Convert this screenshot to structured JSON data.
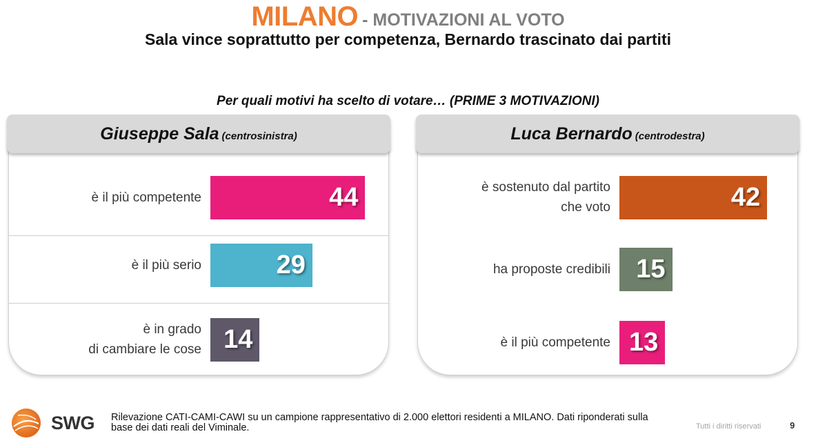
{
  "header": {
    "title": "MILANO",
    "title_suffix": "- MOTIVAZIONI AL VOTO",
    "subtitle": "Sala vince soprattutto per competenza, Bernardo trascinato dai partiti",
    "question": "Per quali motivi ha scelto di votare… (PRIME 3 MOTIVAZIONI)"
  },
  "colors": {
    "title": "#ED7D31",
    "pink": "#E91E7B",
    "blue": "#4EB3CC",
    "purple": "#5E5868",
    "orange": "#C8561A",
    "green": "#6E7F6A"
  },
  "chart_data": [
    {
      "type": "bar",
      "title": "Giuseppe Sala",
      "subtitle": "(centrosinistra)",
      "categories": [
        "è il più competente",
        "è  il più serio",
        "è in grado\ndi cambiare le cose"
      ],
      "values": [
        44,
        29,
        14
      ],
      "colors": [
        "#E91E7B",
        "#4EB3CC",
        "#5E5868"
      ]
    },
    {
      "type": "bar",
      "title": "Luca Bernardo",
      "subtitle": "(centrodestra)",
      "categories": [
        "è sostenuto dal partito\nche voto",
        "ha proposte credibili",
        "è il più competente"
      ],
      "values": [
        42,
        15,
        13
      ],
      "colors": [
        "#C8561A",
        "#6E7F6A",
        "#E91E7B"
      ]
    }
  ],
  "footer": {
    "logo_text": "SWG",
    "note": "Rilevazione CATI-CAMI-CAWI su un campione rappresentativo di 2.000 elettori residenti a MILANO. Dati riponderati sulla base dei dati reali del Viminale.",
    "rights": "Tutti i diritti riservati",
    "page": "9"
  }
}
